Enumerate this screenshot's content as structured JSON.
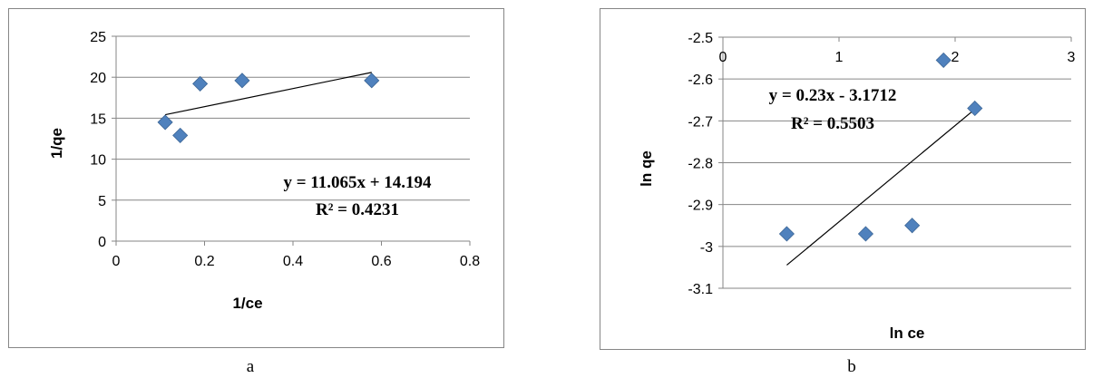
{
  "chart_data": [
    {
      "type": "scatter",
      "panel_label": "a",
      "xlabel": "1/ce",
      "ylabel": "1/qe",
      "xlim": [
        0,
        0.8
      ],
      "ylim": [
        0,
        25
      ],
      "xticks": [
        "0",
        "0.2",
        "0.4",
        "0.6",
        "0.8"
      ],
      "yticks": [
        "0",
        "5",
        "10",
        "15",
        "20",
        "25"
      ],
      "grid": "horizontal",
      "marker_color": "#4F81BD",
      "points": [
        {
          "x": 0.111,
          "y": 14.5
        },
        {
          "x": 0.145,
          "y": 12.9
        },
        {
          "x": 0.19,
          "y": 19.2
        },
        {
          "x": 0.285,
          "y": 19.6
        },
        {
          "x": 0.578,
          "y": 19.6
        }
      ],
      "trendline": {
        "slope": 11.065,
        "intercept": 14.194,
        "x_range": [
          0.111,
          0.578
        ]
      },
      "equation": "y = 11.065x + 14.194",
      "r_squared": "R² = 0.4231"
    },
    {
      "type": "scatter",
      "panel_label": "b",
      "xlabel": "ln ce",
      "ylabel": "ln qe",
      "xlim": [
        0,
        3
      ],
      "ylim": [
        -3.1,
        -2.5
      ],
      "xticks": [
        "0",
        "1",
        "2",
        "3"
      ],
      "yticks": [
        "-2.5",
        "-2.6",
        "-2.7",
        "-2.8",
        "-2.9",
        "-3",
        "-3.1"
      ],
      "grid": "horizontal",
      "marker_color": "#4F81BD",
      "points": [
        {
          "x": 0.55,
          "y": -2.97
        },
        {
          "x": 1.23,
          "y": -2.97
        },
        {
          "x": 1.63,
          "y": -2.95
        },
        {
          "x": 1.9,
          "y": -2.555
        },
        {
          "x": 2.17,
          "y": -2.67
        }
      ],
      "trendline": {
        "slope": 0.23,
        "intercept": -3.1712,
        "x_range": [
          0.55,
          2.17
        ]
      },
      "equation": "y = 0.23x - 3.1712",
      "r_squared": "R² = 0.5503"
    }
  ]
}
